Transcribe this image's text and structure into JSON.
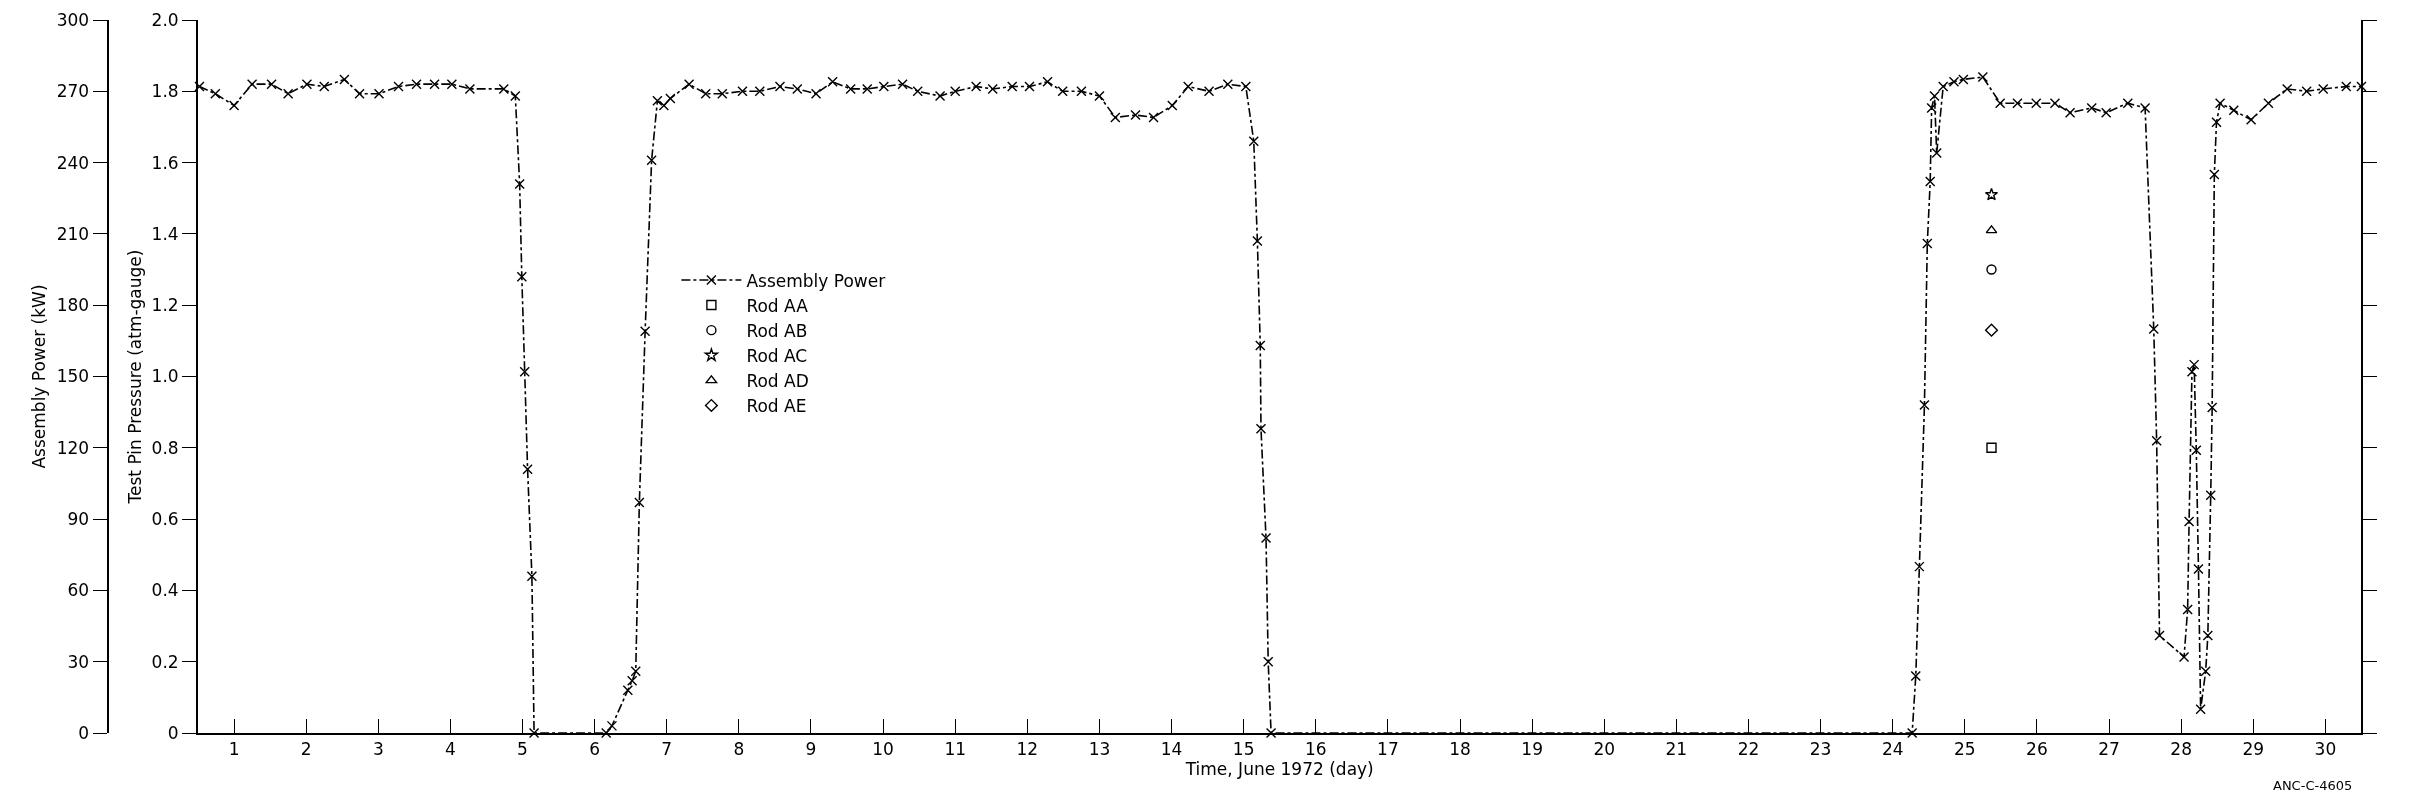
{
  "chart_data": {
    "type": "line",
    "xlabel": "Time, June 1972 (day)",
    "ylabel": "Test Pin Pressure (atm-gauge)",
    "y2label": "Assembly Power (kW)",
    "annotations": [
      "ANC-C-4605"
    ],
    "xlim": [
      0.5,
      30.5
    ],
    "xticks": [
      1,
      2,
      3,
      4,
      5,
      6,
      7,
      8,
      9,
      10,
      11,
      12,
      13,
      14,
      15,
      16,
      17,
      18,
      19,
      20,
      21,
      22,
      23,
      24,
      25,
      26,
      27,
      28,
      29,
      30
    ],
    "ylim": [
      0,
      2.0
    ],
    "yticks": [
      0,
      0.2,
      0.4,
      0.6,
      0.8,
      {
        "value": 1.0,
        "label": "1.0"
      },
      1.2,
      1.4,
      1.6,
      1.8,
      {
        "value": 2.0,
        "label": "2.0"
      }
    ],
    "y2lim": [
      0,
      300
    ],
    "y2ticks": [
      0,
      30,
      60,
      90,
      120,
      150,
      180,
      210,
      240,
      270,
      300
    ],
    "grid": false,
    "legend": "left",
    "series": [
      {
        "name": "Assembly Power",
        "axis": "y2",
        "color": "#000000",
        "marker": "cross",
        "line_style": "dashed",
        "x": [
          0.52,
          0.74,
          1.0,
          1.25,
          1.52,
          1.75,
          2.01,
          2.25,
          2.53,
          2.74,
          3.01,
          3.28,
          3.53,
          3.78,
          4.02,
          4.27,
          4.74,
          4.9,
          4.96,
          4.99,
          5.03,
          5.07,
          5.13,
          5.16,
          6.16,
          6.24,
          6.46,
          6.52,
          6.57,
          6.62,
          6.7,
          6.79,
          6.87,
          6.96,
          7.05,
          7.31,
          7.54,
          7.77,
          8.05,
          8.29,
          8.57,
          8.81,
          9.07,
          9.3,
          9.55,
          9.78,
          10.01,
          10.27,
          10.48,
          10.79,
          11.0,
          11.29,
          11.52,
          11.79,
          12.03,
          12.28,
          12.49,
          12.75,
          13.0,
          13.22,
          13.5,
          13.75,
          14.01,
          14.23,
          14.52,
          14.78,
          15.03,
          15.14,
          15.19,
          15.23,
          15.24,
          15.31,
          15.34,
          15.38,
          24.27,
          24.32,
          24.37,
          24.44,
          24.48,
          24.52,
          24.54,
          24.58,
          24.61,
          24.7,
          24.85,
          24.98,
          25.25,
          25.49,
          25.73,
          25.99,
          26.25,
          26.46,
          26.76,
          26.96,
          27.26,
          27.5,
          27.62,
          27.66,
          27.7,
          28.04,
          28.09,
          28.11,
          28.15,
          28.18,
          28.21,
          28.24,
          28.27,
          28.34,
          28.37,
          28.41,
          28.43,
          28.46,
          28.49,
          28.54,
          28.73,
          28.97,
          29.21,
          29.47,
          29.74,
          29.97,
          30.29,
          30.5
        ],
        "values": [
          272,
          269,
          264,
          273,
          273,
          269,
          273,
          272,
          275,
          269,
          269,
          272,
          273,
          273,
          273,
          271,
          271,
          268,
          231,
          192,
          152,
          111,
          66,
          0,
          0,
          3,
          18,
          22,
          26,
          97,
          169,
          241,
          266,
          264,
          267,
          273,
          269,
          269,
          270,
          270,
          272,
          271,
          269,
          274,
          271,
          271,
          272,
          273,
          270,
          268,
          270,
          272,
          271,
          272,
          272,
          274,
          270,
          270,
          268,
          259,
          260,
          259,
          264,
          272,
          270,
          273,
          272,
          249,
          207,
          163,
          128,
          82,
          30,
          0,
          0,
          24,
          70,
          138,
          206,
          232,
          263,
          268,
          244,
          272,
          274,
          275,
          276,
          265,
          265,
          265,
          265,
          261,
          263,
          261,
          265,
          263,
          170,
          123,
          41,
          32,
          52,
          89,
          152,
          155,
          119,
          69,
          10,
          26,
          41,
          100,
          137,
          235,
          257,
          265,
          262,
          258,
          265,
          271,
          270,
          271,
          272,
          272
        ]
      },
      {
        "name": "Rod AA",
        "type": "scatter",
        "color": "#000000",
        "marker": "square",
        "x": [
          25.37
        ],
        "values": [
          0.8
        ]
      },
      {
        "name": "Rod AB",
        "type": "scatter",
        "color": "#000000",
        "marker": "circle",
        "x": [
          25.37
        ],
        "values": [
          1.3
        ]
      },
      {
        "name": "Rod AC",
        "type": "scatter",
        "color": "#000000",
        "marker": "star",
        "x": [
          25.37
        ],
        "values": [
          1.51
        ]
      },
      {
        "name": "Rod AD",
        "type": "scatter",
        "color": "#000000",
        "marker": "triangle",
        "x": [
          25.37
        ],
        "values": [
          1.41
        ]
      },
      {
        "name": "Rod AE",
        "type": "scatter",
        "color": "#000000",
        "marker": "diamond",
        "x": [
          25.37
        ],
        "values": [
          1.13
        ]
      }
    ]
  }
}
